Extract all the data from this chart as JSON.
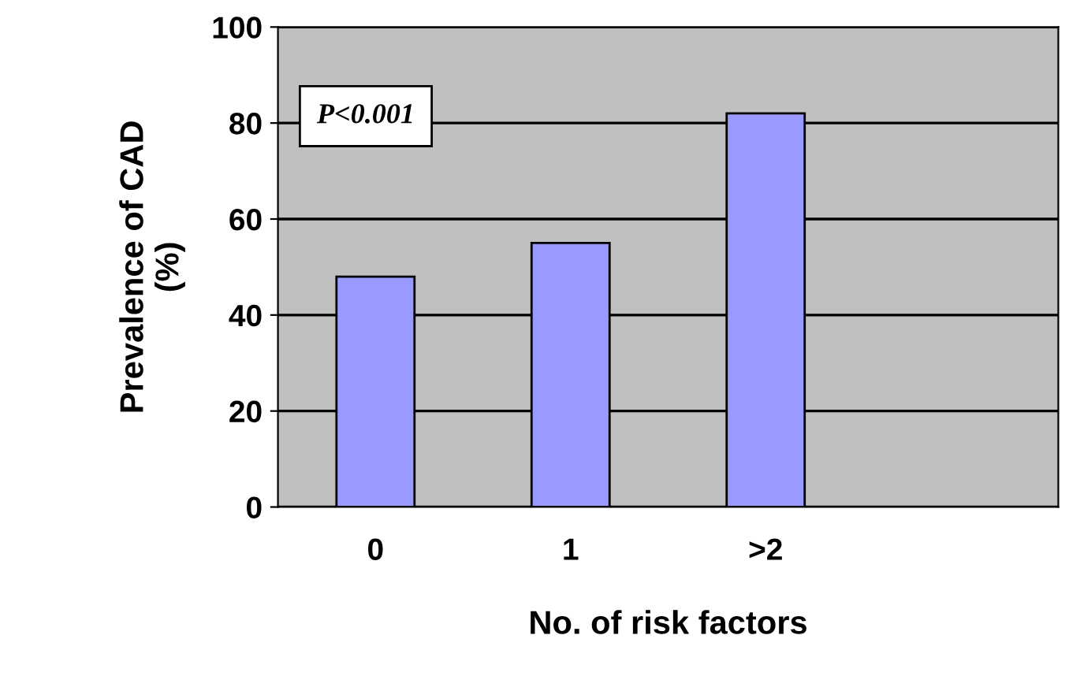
{
  "chart_data": {
    "type": "bar",
    "xlabel": "No. of risk factors",
    "ylabel": "Prevalence of CAD\n(%)",
    "categories": [
      "0",
      "1",
      ">2",
      null
    ],
    "values": [
      48,
      55,
      82,
      null
    ],
    "color": "#9999ff",
    "ylim": [
      0,
      100
    ],
    "yticks": [
      0,
      20,
      40,
      60,
      80,
      100
    ],
    "grid": "y",
    "annotations": [
      "P<0.001"
    ]
  }
}
